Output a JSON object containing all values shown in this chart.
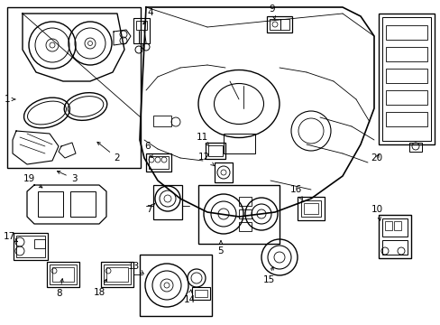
{
  "bg_color": "#ffffff",
  "line_color": "#000000",
  "figsize": [
    4.89,
    3.6
  ],
  "dpi": 100,
  "label_fontsize": 7.5
}
